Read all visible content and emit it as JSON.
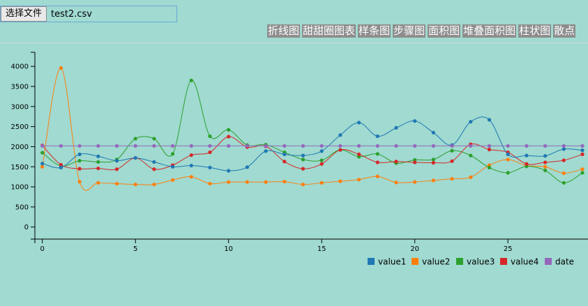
{
  "file_input": {
    "button_label": "选择文件",
    "file_name": "test2.csv"
  },
  "chart_type_buttons": [
    "折线图",
    "甜甜圈图表",
    "样条图",
    "步骤图",
    "面积图",
    "堆叠面积图",
    "柱状图",
    "散点"
  ],
  "chart_data": {
    "type": "line",
    "x": [
      0,
      1,
      2,
      3,
      4,
      5,
      6,
      7,
      8,
      9,
      10,
      11,
      12,
      13,
      14,
      15,
      16,
      17,
      18,
      19,
      20,
      21,
      22,
      23,
      24,
      25,
      26,
      27,
      28,
      29
    ],
    "x_ticks": [
      0,
      5,
      10,
      15,
      20,
      25
    ],
    "y_ticks": [
      0,
      500,
      1000,
      1500,
      2000,
      2500,
      3000,
      3500,
      4000
    ],
    "ylim": [
      -300,
      4350
    ],
    "xlim": [
      -0.4,
      29.3
    ],
    "grid": false,
    "legend_position": "bottom-right",
    "series": [
      {
        "name": "value1",
        "color": "#1f77b4",
        "values": [
          1580,
          1480,
          1810,
          1760,
          1650,
          1720,
          1620,
          1500,
          1530,
          1480,
          1400,
          1490,
          1890,
          1810,
          1780,
          1890,
          2290,
          2600,
          2260,
          2470,
          2640,
          2350,
          2040,
          2620,
          2670,
          1810,
          1780,
          1770,
          1940,
          1910
        ]
      },
      {
        "name": "value2",
        "color": "#ff7f0e",
        "values": [
          1500,
          3960,
          1130,
          1100,
          1080,
          1060,
          1060,
          1170,
          1250,
          1080,
          1120,
          1120,
          1120,
          1130,
          1060,
          1100,
          1140,
          1180,
          1260,
          1110,
          1120,
          1160,
          1200,
          1240,
          1540,
          1680,
          1530,
          1500,
          1340,
          1440
        ]
      },
      {
        "name": "value3",
        "color": "#2ca02c",
        "values": [
          1850,
          1520,
          1650,
          1620,
          1680,
          2200,
          2200,
          1820,
          3650,
          2260,
          2420,
          2040,
          2050,
          1860,
          1680,
          1660,
          1920,
          1750,
          1820,
          1590,
          1670,
          1680,
          1900,
          1780,
          1480,
          1350,
          1510,
          1410,
          1100,
          1350
        ]
      },
      {
        "name": "value4",
        "color": "#d62728",
        "values": [
          2030,
          1550,
          1450,
          1460,
          1440,
          1720,
          1440,
          1540,
          1790,
          1860,
          2250,
          1990,
          2010,
          1630,
          1450,
          1570,
          1920,
          1810,
          1610,
          1630,
          1610,
          1600,
          1640,
          2060,
          1930,
          1860,
          1570,
          1610,
          1660,
          1810
        ]
      },
      {
        "name": "date",
        "color": "#9467bd",
        "values": [
          2020,
          2020,
          2020,
          2020,
          2020,
          2020,
          2020,
          2020,
          2020,
          2020,
          2020,
          2020,
          2020,
          2020,
          2020,
          2020,
          2020,
          2020,
          2020,
          2020,
          2020,
          2020,
          2020,
          2020,
          2020,
          2020,
          2020,
          2020,
          2020,
          2020
        ]
      }
    ]
  }
}
